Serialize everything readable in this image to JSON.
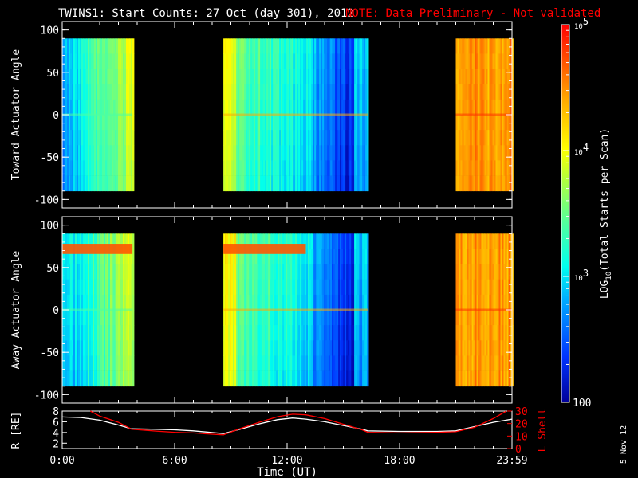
{
  "title": {
    "main": "TWINS1: Start Counts: 27 Oct (day 301), 2012",
    "note": "NOTE: Data Preliminary - Not validated"
  },
  "colors": {
    "text": "#ffffff",
    "note": "#ff0000",
    "background": "#000000",
    "r_line": "#ffffff",
    "lshell_line": "#ff0000"
  },
  "side_date": "5 Nov 12",
  "chart_data": [
    {
      "type": "heatmap",
      "name": "toward",
      "ylabel": "Toward Actuator Angle",
      "ylim": [
        -110,
        110
      ],
      "yticks": [
        -100,
        -50,
        0,
        50,
        100
      ],
      "data_y_range": [
        -90,
        90
      ],
      "xlim_hours": [
        0,
        24
      ],
      "blocks": [
        {
          "start": 0.0,
          "end": 3.75,
          "regime": "early"
        },
        {
          "start": 8.6,
          "end": 16.3,
          "regime": "mid"
        },
        {
          "start": 21.0,
          "end": 24.0,
          "regime": "late"
        }
      ]
    },
    {
      "type": "heatmap",
      "name": "away",
      "ylabel": "Away Actuator Angle",
      "ylim": [
        -110,
        110
      ],
      "yticks": [
        -100,
        -50,
        0,
        50,
        100
      ],
      "data_y_range": [
        -90,
        90
      ],
      "xlim_hours": [
        0,
        24
      ],
      "blocks": [
        {
          "start": 0.0,
          "end": 3.75,
          "regime": "early"
        },
        {
          "start": 8.6,
          "end": 16.3,
          "regime": "mid"
        },
        {
          "start": 21.0,
          "end": 24.0,
          "regime": "late"
        }
      ]
    },
    {
      "type": "line",
      "name": "orbit",
      "xlabel": "Time (UT)",
      "xtick_labels": [
        "0:00",
        "6:00",
        "12:00",
        "18:00",
        "23:59"
      ],
      "xtick_hours": [
        0,
        6,
        12,
        18,
        24
      ],
      "left_axis": {
        "label": "R [RE]",
        "ylim": [
          1,
          8
        ],
        "ticks": [
          2,
          4,
          6,
          8
        ]
      },
      "right_axis": {
        "label": "L Shell",
        "ylim": [
          0,
          30
        ],
        "ticks": [
          0,
          10,
          20,
          30
        ]
      },
      "series": [
        {
          "name": "R",
          "axis": "left",
          "x": [
            0,
            1,
            2,
            3,
            3.7,
            5,
            6,
            7,
            8,
            8.6,
            9.5,
            10.5,
            11.5,
            12.3,
            13,
            14,
            15,
            16,
            16.3,
            18,
            20,
            21,
            22,
            23,
            24
          ],
          "y": [
            6.9,
            6.8,
            6.3,
            5.4,
            4.7,
            4.6,
            4.5,
            4.3,
            4.0,
            3.8,
            4.6,
            5.6,
            6.4,
            6.7,
            6.5,
            6.0,
            5.3,
            4.6,
            4.3,
            4.2,
            4.2,
            4.3,
            5.1,
            5.9,
            6.5
          ]
        },
        {
          "name": "L Shell",
          "axis": "right",
          "x": [
            1.5,
            2,
            3,
            3.7,
            5,
            6,
            7,
            8,
            8.6,
            9.5,
            10.5,
            11.5,
            12.3,
            13,
            14,
            15,
            16,
            16.3,
            18,
            20,
            21,
            22,
            23,
            23.7
          ],
          "y": [
            30,
            26,
            21,
            15.5,
            14,
            13,
            12.5,
            11.5,
            11,
            16,
            21,
            25.5,
            27.5,
            27,
            24,
            19.5,
            15,
            13,
            12.5,
            13,
            13.5,
            17,
            24,
            30
          ]
        }
      ]
    }
  ],
  "colorbar": {
    "label": "LOG10(Total Starts per Scan)",
    "label_main": "LOG",
    "label_sub": "10",
    "label_rest": "(Total Starts per Scan)",
    "scale": "log",
    "min": 100,
    "max": 100000,
    "ticks": [
      {
        "value": 100,
        "text": "100"
      },
      {
        "value": 1000,
        "text": "10",
        "sup": "3"
      },
      {
        "value": 10000,
        "text": "10",
        "sup": "4"
      },
      {
        "value": 100000,
        "text": "10",
        "sup": "5"
      }
    ]
  }
}
